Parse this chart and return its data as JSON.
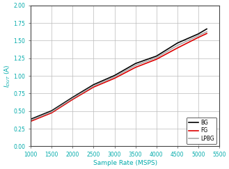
{
  "title": "",
  "xlabel": "Sample Rate (MSPS)",
  "xlim": [
    1000,
    5500
  ],
  "ylim": [
    0,
    2
  ],
  "xticks": [
    1000,
    1500,
    2000,
    2500,
    3000,
    3500,
    4000,
    4500,
    5000,
    5500
  ],
  "yticks": [
    0,
    0.25,
    0.5,
    0.75,
    1,
    1.25,
    1.5,
    1.75,
    2
  ],
  "series": [
    {
      "label": "BG",
      "color": "#000000",
      "linewidth": 1.2,
      "x": [
        1000,
        1500,
        2000,
        2500,
        3000,
        3500,
        4000,
        4500,
        5000,
        5200
      ],
      "y": [
        0.385,
        0.505,
        0.695,
        0.875,
        1.005,
        1.175,
        1.28,
        1.465,
        1.595,
        1.665
      ]
    },
    {
      "label": "FG",
      "color": "#dd0000",
      "linewidth": 1.2,
      "x": [
        1000,
        1500,
        2000,
        2500,
        3000,
        3500,
        4000,
        4500,
        5000,
        5200
      ],
      "y": [
        0.355,
        0.475,
        0.665,
        0.84,
        0.965,
        1.12,
        1.235,
        1.395,
        1.545,
        1.6
      ]
    },
    {
      "label": "LPBG",
      "color": "#aaaaaa",
      "linewidth": 1.2,
      "x": [
        1000,
        1500,
        2000,
        2500,
        3000,
        3500,
        4000,
        4500,
        5000,
        5200
      ],
      "y": [
        0.37,
        0.49,
        0.68,
        0.857,
        0.985,
        1.148,
        1.258,
        1.43,
        1.57,
        1.625
      ]
    }
  ],
  "legend_loc": "lower right",
  "grid_color": "#bbbbbb",
  "tick_label_color": "#00AAAA",
  "axis_label_color": "#00AAAA",
  "background_color": "#ffffff",
  "tick_fontsize": 5.5,
  "label_fontsize": 6.5,
  "legend_fontsize": 5.5
}
